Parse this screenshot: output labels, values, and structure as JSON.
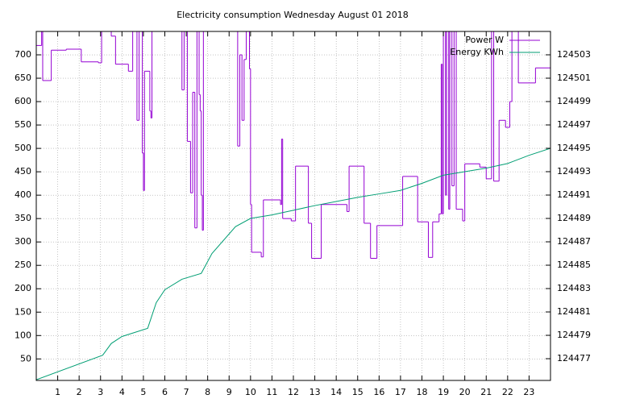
{
  "chart_data": {
    "type": "line",
    "title": "Electricity consumption Wednesday August 01 2018",
    "xlim": [
      0,
      24
    ],
    "xticks": [
      1,
      2,
      3,
      4,
      5,
      6,
      7,
      8,
      9,
      10,
      11,
      12,
      13,
      14,
      15,
      16,
      17,
      18,
      19,
      20,
      21,
      22,
      23
    ],
    "ylim": [
      4,
      750
    ],
    "yticks": [
      50,
      100,
      150,
      200,
      250,
      300,
      350,
      400,
      450,
      500,
      550,
      600,
      650,
      700
    ],
    "y2lim": [
      124475.14,
      124505
    ],
    "y2ticks": [
      124477,
      124479,
      124481,
      124483,
      124485,
      124487,
      124489,
      124491,
      124493,
      124495,
      124497,
      124499,
      124501,
      124503
    ],
    "grid": true,
    "legend": "top-right",
    "series": [
      {
        "name": "Power W",
        "color": "#9400d3",
        "step": true,
        "x": [
          0,
          0.25,
          0.3,
          0.7,
          1.4,
          2.1,
          2.9,
          3.05,
          3.5,
          3.7,
          4.3,
          4.5,
          4.7,
          4.8,
          4.95,
          5.0,
          5.05,
          5.1,
          5.3,
          5.35,
          5.4,
          6.8,
          6.9,
          7.05,
          7.2,
          7.3,
          7.4,
          7.5,
          7.6,
          7.65,
          7.7,
          7.75,
          7.8,
          9.4,
          9.5,
          9.6,
          9.7,
          9.8,
          9.95,
          10.0,
          10.05,
          10.5,
          10.6,
          11.4,
          11.45,
          11.5,
          11.9,
          12.1,
          12.7,
          12.85,
          13.3,
          14.5,
          14.6,
          15.3,
          15.6,
          15.9,
          17.1,
          17.8,
          18.3,
          18.5,
          18.8,
          18.9,
          18.95,
          19.0,
          19.1,
          19.15,
          19.25,
          19.3,
          19.4,
          19.5,
          19.6,
          19.9,
          20.0,
          20.7,
          21.0,
          21.25,
          21.35,
          21.6,
          21.9,
          22.1,
          22.2,
          22.5,
          23.3
        ],
        "values": [
          720,
          780,
          645,
          710,
          712,
          685,
          683,
          780,
          740,
          680,
          665,
          780,
          560,
          780,
          490,
          410,
          665,
          665,
          580,
          565,
          780,
          625,
          780,
          515,
          405,
          620,
          330,
          780,
          615,
          580,
          400,
          325,
          780,
          505,
          700,
          560,
          690,
          780,
          670,
          380,
          278,
          268,
          390,
          380,
          520,
          350,
          345,
          462,
          340,
          265,
          380,
          365,
          462,
          340,
          265,
          335,
          440,
          343,
          267,
          343,
          360,
          680,
          360,
          780,
          400,
          780,
          370,
          780,
          420,
          780,
          370,
          345,
          467,
          460,
          435,
          780,
          430,
          560,
          545,
          600,
          780,
          640,
          672
        ]
      },
      {
        "name": "Energy KWh",
        "color": "#009e73",
        "axis": "y2",
        "x": [
          0,
          3.1,
          3.5,
          4,
          5.2,
          5.6,
          6,
          6.8,
          7.7,
          8.2,
          9.3,
          10,
          11,
          12,
          13,
          15,
          16,
          17,
          18,
          19,
          20,
          21,
          22,
          23,
          24
        ],
        "values": [
          124475.2,
          124477.3,
          124478.3,
          124478.9,
          124479.6,
          124481.8,
          124482.9,
          124483.8,
          124484.3,
          124486,
          124488.3,
          124489,
          124489.3,
          124489.7,
          124490.1,
          124490.8,
          124491.1,
          124491.4,
          124492,
          124492.7,
          124493,
          124493.3,
          124493.7,
          124494.4,
          124495
        ]
      }
    ]
  }
}
